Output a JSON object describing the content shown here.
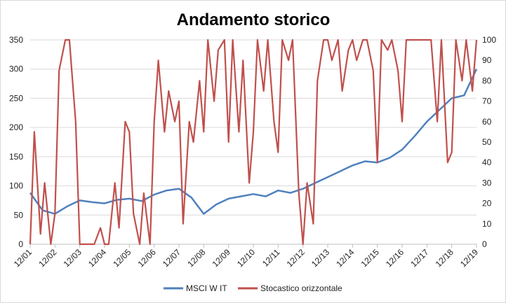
{
  "chart_data": {
    "type": "line",
    "title": "Andamento storico",
    "x_tick_labels": [
      "12/01",
      "12/02",
      "12/03",
      "12/04",
      "12/05",
      "12/06",
      "12/07",
      "12/08",
      "12/09",
      "12/10",
      "12/11",
      "12/12",
      "12/13",
      "12/14",
      "12/15",
      "12/16",
      "12/17",
      "12/18",
      "12/19"
    ],
    "y_left": {
      "ylim": [
        0,
        350
      ],
      "ticks": [
        0,
        50,
        100,
        150,
        200,
        250,
        300,
        350
      ]
    },
    "y_right": {
      "ylim": [
        0,
        100
      ],
      "ticks": [
        0,
        10,
        20,
        30,
        40,
        50,
        60,
        70,
        80,
        90,
        100
      ]
    },
    "grid": "horizontal",
    "legend_position": "bottom",
    "series": [
      {
        "name": "MSCI W IT",
        "axis": "left",
        "color": "#4f81bd",
        "x": [
          "12/01",
          "06/02",
          "12/02",
          "06/03",
          "12/03",
          "06/04",
          "12/04",
          "06/05",
          "12/05",
          "06/06",
          "12/06",
          "06/07",
          "12/07",
          "06/08",
          "12/08",
          "06/09",
          "12/09",
          "06/10",
          "12/10",
          "06/11",
          "12/11",
          "06/12",
          "12/12",
          "06/13",
          "12/13",
          "06/14",
          "12/14",
          "06/15",
          "12/15",
          "06/16",
          "12/16",
          "06/17",
          "12/17",
          "06/18",
          "12/18",
          "06/19",
          "12/19"
        ],
        "values": [
          88,
          58,
          52,
          65,
          75,
          72,
          70,
          76,
          78,
          74,
          85,
          92,
          95,
          80,
          52,
          68,
          78,
          82,
          86,
          82,
          92,
          88,
          95,
          105,
          115,
          125,
          135,
          142,
          140,
          148,
          162,
          185,
          210,
          230,
          250,
          255,
          300
        ]
      },
      {
        "name": "Stocastico orizzontale",
        "axis": "right",
        "color": "#c0504d",
        "x": [
          "12/01",
          "02/02",
          "05/02",
          "07/02",
          "10/02",
          "12/02",
          "02/03",
          "05/03",
          "07/03",
          "10/03",
          "12/03",
          "02/04",
          "05/04",
          "07/04",
          "10/04",
          "12/04",
          "02/05",
          "05/05",
          "07/05",
          "10/05",
          "12/05",
          "02/06",
          "05/06",
          "07/06",
          "10/06",
          "12/06",
          "02/07",
          "05/07",
          "07/07",
          "10/07",
          "12/07",
          "02/08",
          "05/08",
          "07/08",
          "10/08",
          "12/08",
          "02/09",
          "05/09",
          "07/09",
          "10/09",
          "12/09",
          "02/10",
          "05/10",
          "07/10",
          "10/10",
          "12/10",
          "02/11",
          "05/11",
          "07/11",
          "10/11",
          "12/11",
          "02/12",
          "05/12",
          "07/12",
          "10/12",
          "12/12",
          "02/13",
          "05/13",
          "07/13",
          "10/13",
          "12/13",
          "02/14",
          "05/14",
          "07/14",
          "10/14",
          "12/14",
          "02/15",
          "05/15",
          "07/15",
          "10/15",
          "12/15",
          "02/16",
          "05/16",
          "07/16",
          "10/16",
          "12/16",
          "02/17",
          "05/17",
          "07/17",
          "10/17",
          "12/17",
          "02/18",
          "05/18",
          "07/18",
          "10/18",
          "12/18",
          "02/19",
          "05/19",
          "07/19",
          "10/19",
          "12/19"
        ],
        "values": [
          0,
          55,
          5,
          30,
          0,
          15,
          85,
          100,
          100,
          60,
          0,
          0,
          0,
          0,
          8,
          0,
          0,
          30,
          8,
          60,
          55,
          15,
          0,
          25,
          0,
          60,
          90,
          55,
          75,
          60,
          70,
          10,
          60,
          50,
          80,
          55,
          100,
          70,
          95,
          100,
          50,
          100,
          55,
          90,
          30,
          55,
          100,
          75,
          100,
          60,
          45,
          100,
          90,
          100,
          25,
          0,
          30,
          10,
          80,
          100,
          100,
          90,
          100,
          75,
          95,
          100,
          90,
          100,
          100,
          85,
          40,
          100,
          95,
          100,
          85,
          60,
          100,
          100,
          100,
          100,
          100,
          100,
          60,
          100,
          40,
          45,
          100,
          80,
          100,
          75,
          100
        ]
      }
    ]
  }
}
